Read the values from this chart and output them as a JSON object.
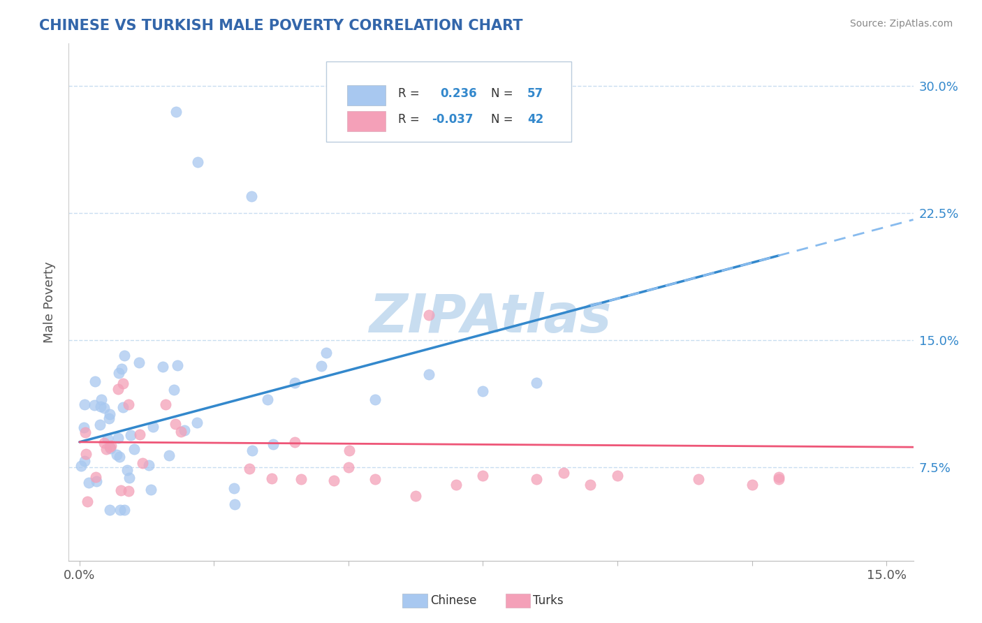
{
  "title": "CHINESE VS TURKISH MALE POVERTY CORRELATION CHART",
  "source": "Source: ZipAtlas.com",
  "ylabel": "Male Poverty",
  "ytick_labels": [
    "7.5%",
    "15.0%",
    "22.5%",
    "30.0%"
  ],
  "ytick_values": [
    0.075,
    0.15,
    0.225,
    0.3
  ],
  "xlim": [
    -0.002,
    0.155
  ],
  "ylim": [
    0.02,
    0.325
  ],
  "chinese_R": 0.236,
  "chinese_N": 57,
  "turkish_R": -0.037,
  "turkish_N": 42,
  "chinese_color": "#a8c8f0",
  "turkish_color": "#f4a0b8",
  "chinese_line_color": "#3388cc",
  "turkish_line_color": "#ee5577",
  "dashed_line_color": "#88bbee",
  "watermark_color": "#c8ddf0",
  "background_color": "#ffffff",
  "grid_color": "#c8ddf0",
  "right_tick_color": "#3388cc",
  "title_color": "#3366aa",
  "source_color": "#888888",
  "label_color": "#555555",
  "legend_box_edge": "#bbccdd",
  "legend_R_label_color": "#333333",
  "legend_val_color": "#3388cc"
}
